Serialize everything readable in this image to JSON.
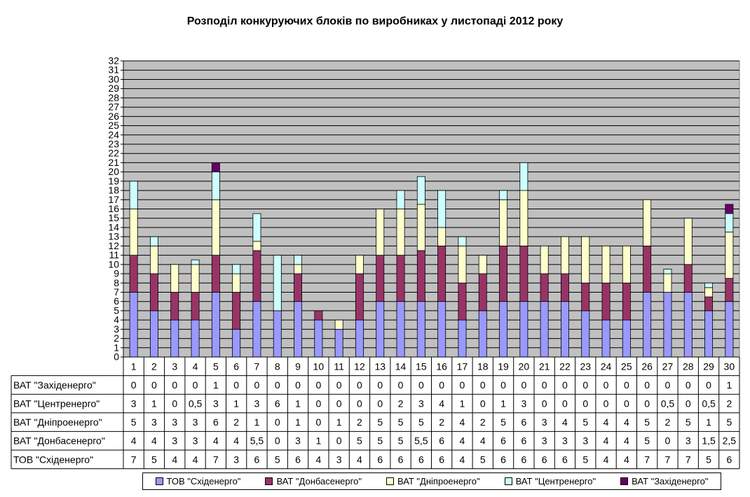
{
  "chart_data": {
    "type": "bar",
    "stacked": true,
    "title": "Розподіл конкуруючих блоків по виробниках у листопаді 2012 року",
    "categories": [
      "1",
      "2",
      "3",
      "4",
      "5",
      "6",
      "7",
      "8",
      "9",
      "10",
      "11",
      "12",
      "13",
      "14",
      "15",
      "16",
      "17",
      "18",
      "19",
      "20",
      "21",
      "22",
      "23",
      "24",
      "25",
      "26",
      "27",
      "28",
      "29",
      "30"
    ],
    "ylim": [
      0,
      32
    ],
    "yticks": [
      0,
      1,
      2,
      3,
      4,
      5,
      6,
      7,
      8,
      9,
      10,
      11,
      12,
      13,
      14,
      15,
      16,
      17,
      18,
      19,
      20,
      21,
      22,
      23,
      24,
      25,
      26,
      27,
      28,
      29,
      30,
      31,
      32
    ],
    "grid": true,
    "legend_position": "bottom",
    "series": [
      {
        "name": "ТОВ \"Східенерго\"",
        "color": "#9999ff",
        "values": [
          7,
          5,
          4,
          4,
          7,
          3,
          6,
          5,
          6,
          4,
          3,
          4,
          6,
          6,
          6,
          6,
          4,
          5,
          6,
          6,
          6,
          6,
          5,
          4,
          4,
          7,
          7,
          7,
          5,
          6
        ],
        "labels": [
          "7",
          "5",
          "4",
          "4",
          "7",
          "3",
          "6",
          "5",
          "6",
          "4",
          "3",
          "4",
          "6",
          "6",
          "6",
          "6",
          "4",
          "5",
          "6",
          "6",
          "6",
          "6",
          "5",
          "4",
          "4",
          "7",
          "7",
          "7",
          "5",
          "6"
        ]
      },
      {
        "name": "ВАТ \"Донбасенерго\"",
        "color": "#993366",
        "values": [
          4,
          4,
          3,
          3,
          4,
          4,
          5.5,
          0,
          3,
          1,
          0,
          5,
          5,
          5,
          5.5,
          6,
          4,
          4,
          6,
          6,
          3,
          3,
          3,
          4,
          4,
          5,
          0,
          3,
          1.5,
          2.5
        ],
        "labels": [
          "4",
          "4",
          "3",
          "3",
          "4",
          "4",
          "5,5",
          "0",
          "3",
          "1",
          "0",
          "5",
          "5",
          "5",
          "5,5",
          "6",
          "4",
          "4",
          "6",
          "6",
          "3",
          "3",
          "3",
          "4",
          "4",
          "5",
          "0",
          "3",
          "1,5",
          "2,5"
        ]
      },
      {
        "name": "ВАТ \"Дніпроенерго\"",
        "color": "#ffffcc",
        "values": [
          5,
          3,
          3,
          3,
          6,
          2,
          1,
          0,
          1,
          0,
          1,
          2,
          5,
          5,
          5,
          2,
          4,
          2,
          5,
          6,
          3,
          4,
          5,
          4,
          4,
          5,
          2,
          5,
          1,
          5
        ],
        "labels": [
          "5",
          "3",
          "3",
          "3",
          "6",
          "2",
          "1",
          "0",
          "1",
          "0",
          "1",
          "2",
          "5",
          "5",
          "5",
          "2",
          "4",
          "2",
          "5",
          "6",
          "3",
          "4",
          "5",
          "4",
          "4",
          "5",
          "2",
          "5",
          "1",
          "5"
        ]
      },
      {
        "name": "ВАТ \"Центренерго\"",
        "color": "#ccffff",
        "values": [
          3,
          1,
          0,
          0.5,
          3,
          1,
          3,
          6,
          1,
          0,
          0,
          0,
          0,
          2,
          3,
          4,
          1,
          0,
          1,
          3,
          0,
          0,
          0,
          0,
          0,
          0,
          0.5,
          0,
          0.5,
          2
        ],
        "labels": [
          "3",
          "1",
          "0",
          "0,5",
          "3",
          "1",
          "3",
          "6",
          "1",
          "0",
          "0",
          "0",
          "0",
          "2",
          "3",
          "4",
          "1",
          "0",
          "1",
          "3",
          "0",
          "0",
          "0",
          "0",
          "0",
          "0",
          "0,5",
          "0",
          "0,5",
          "2"
        ]
      },
      {
        "name": "ВАТ \"Західенерго\"",
        "color": "#660066",
        "values": [
          0,
          0,
          0,
          0,
          1,
          0,
          0,
          0,
          0,
          0,
          0,
          0,
          0,
          0,
          0,
          0,
          0,
          0,
          0,
          0,
          0,
          0,
          0,
          0,
          0,
          0,
          0,
          0,
          0,
          1
        ],
        "labels": [
          "0",
          "0",
          "0",
          "0",
          "1",
          "0",
          "0",
          "0",
          "0",
          "0",
          "0",
          "0",
          "0",
          "0",
          "0",
          "0",
          "0",
          "0",
          "0",
          "0",
          "0",
          "0",
          "0",
          "0",
          "0",
          "0",
          "0",
          "0",
          "0",
          "1"
        ]
      }
    ],
    "table_row_order": [
      "ВАТ \"Західенерго\"",
      "ВАТ \"Центренерго\"",
      "ВАТ \"Дніпроенерго\"",
      "ВАТ \"Донбасенерго\"",
      "ТОВ \"Східенерго\""
    ]
  },
  "colors": {
    "plot_background": "#c0c0c0",
    "gridline": "#000000"
  }
}
